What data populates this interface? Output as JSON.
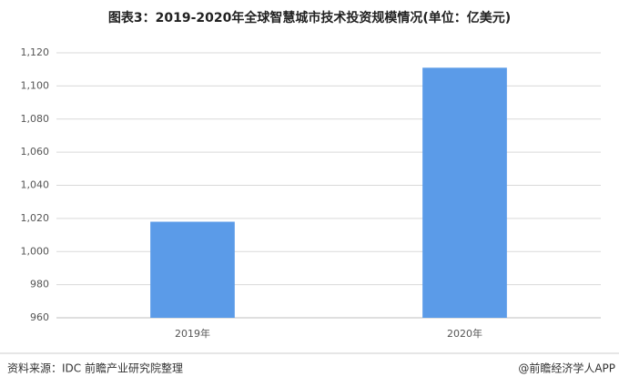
{
  "chart_data": {
    "type": "bar",
    "title": "图表3：2019-2020年全球智慧城市技术投资规模情况(单位：亿美元)",
    "categories": [
      "2019年",
      "2020年"
    ],
    "values": [
      1018,
      1111
    ],
    "color": "#5b9be8",
    "ylim": [
      960,
      1120
    ],
    "yticks": [
      960,
      980,
      {
        "value": 1000,
        "label": "1,000"
      },
      {
        "value": 1020,
        "label": "1,020"
      },
      {
        "value": 1040,
        "label": "1,040"
      },
      {
        "value": 1060,
        "label": "1,060"
      },
      {
        "value": 1080,
        "label": "1,080"
      },
      {
        "value": 1100,
        "label": "1,100"
      },
      {
        "value": 1120,
        "label": "1,120"
      }
    ],
    "grid": true,
    "source": "资料来源：IDC 前瞻产业研究院整理",
    "credit": "@前瞻经济学人APP"
  }
}
